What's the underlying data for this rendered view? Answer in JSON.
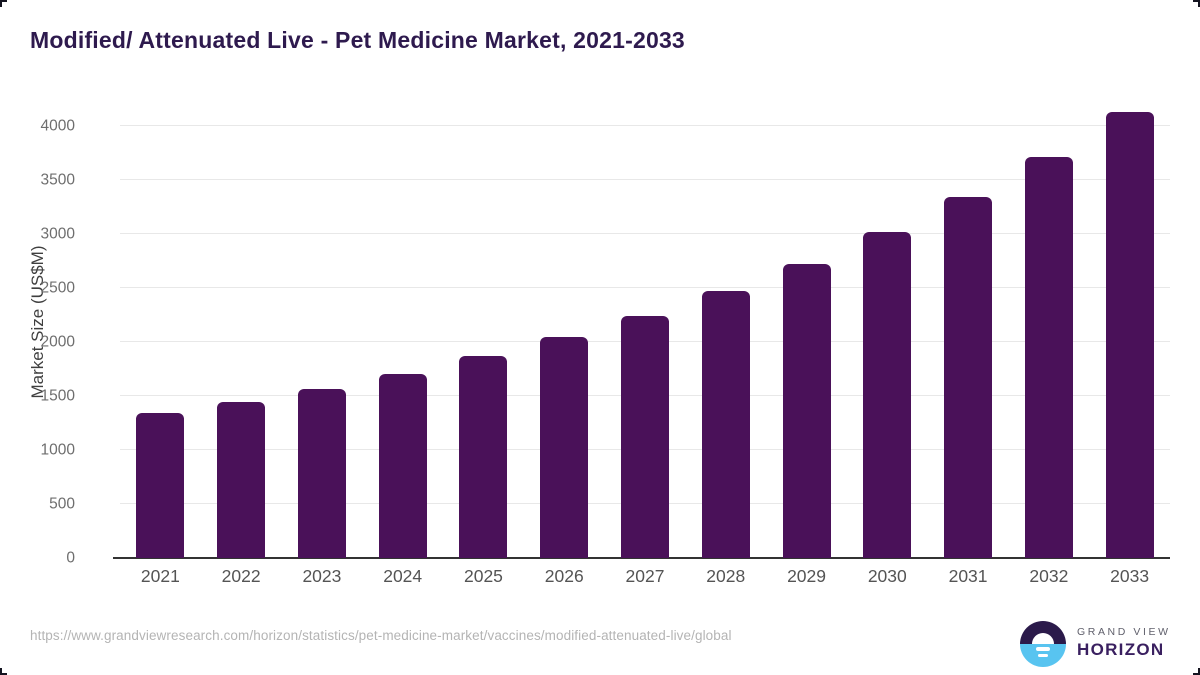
{
  "title": "Modified/ Attenuated Live - Pet Medicine Market, 2021-2033",
  "chart_data": {
    "type": "bar",
    "title": "Modified/ Attenuated Live - Pet Medicine Market, 2021-2033",
    "categories": [
      "2021",
      "2022",
      "2023",
      "2024",
      "2025",
      "2026",
      "2027",
      "2028",
      "2029",
      "2030",
      "2031",
      "2032",
      "2033"
    ],
    "values": [
      1345,
      1445,
      1565,
      1700,
      1870,
      2045,
      2240,
      2470,
      2720,
      3020,
      3340,
      3710,
      4130
    ],
    "xlabel": "",
    "ylabel": "Market Size (US$M)",
    "ylim": [
      0,
      4000
    ],
    "ytick_step": 500,
    "ytick_labels": [
      "0",
      "500",
      "1000",
      "1500",
      "2000",
      "2500",
      "3000",
      "3500",
      "4000"
    ],
    "grid": true,
    "legend": "none",
    "bar_color": "#4a1159"
  },
  "colors": {
    "bar": "#4a1159",
    "title_text": "#2e1a4e",
    "gridline": "#e8e8e8",
    "axis_line": "#333333",
    "y_tick_text": "#6e6e6e",
    "x_tick_text": "#545454",
    "footer_text": "#b4b4b4",
    "logo_circle_top": "#2b1a4a",
    "logo_circle_bottom": "#58c4f0",
    "logo_horizon_text": "#3a2060"
  },
  "footer": {
    "source_url": "https://www.grandviewresearch.com/horizon/statistics/pet-medicine-market/vaccines/modified-attenuated-live/global",
    "logo": {
      "brand_top": "GRAND VIEW",
      "brand_bottom": "HORIZON",
      "icon": "horizon-sunrise-icon"
    }
  }
}
